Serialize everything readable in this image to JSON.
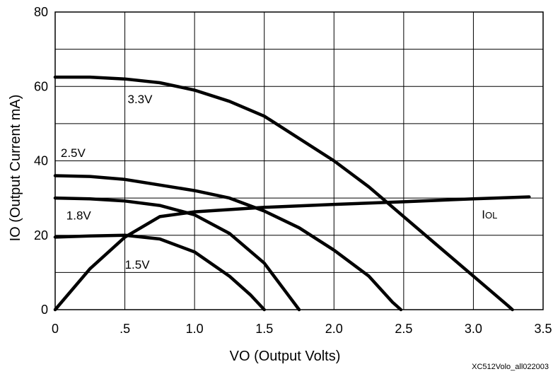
{
  "chart_data": {
    "type": "line",
    "xlabel": "VO (Output Volts)",
    "ylabel": "IO (Output Current mA)",
    "xlim": [
      0,
      3.5
    ],
    "ylim": [
      0,
      80
    ],
    "x_tick_labels": [
      "0",
      ".5",
      "1.0",
      "1.5",
      "2.0",
      "2.5",
      "3.0",
      "3.5"
    ],
    "y_tick_labels": [
      "0",
      "20",
      "40",
      "60",
      "80"
    ],
    "grid": true,
    "series": [
      {
        "name": "3.3V",
        "x": [
          0,
          0.25,
          0.5,
          0.75,
          1.0,
          1.25,
          1.5,
          1.75,
          2.0,
          2.25,
          2.5,
          2.75,
          3.0,
          3.25,
          3.28
        ],
        "y": [
          62.5,
          62.5,
          62,
          61,
          59,
          56,
          52,
          46,
          40,
          33,
          25,
          17,
          9,
          1,
          0
        ]
      },
      {
        "name": "2.5V",
        "x": [
          0,
          0.25,
          0.5,
          0.75,
          1.0,
          1.25,
          1.5,
          1.75,
          2.0,
          2.25,
          2.42,
          2.48
        ],
        "y": [
          36,
          35.8,
          35,
          33.5,
          32,
          30,
          26.5,
          22,
          16,
          9,
          2,
          0
        ]
      },
      {
        "name": "1.8V",
        "x": [
          0,
          0.25,
          0.5,
          0.75,
          1.0,
          1.25,
          1.5,
          1.65,
          1.75
        ],
        "y": [
          30,
          29.8,
          29.2,
          28,
          25.5,
          20.5,
          12.5,
          5,
          0
        ]
      },
      {
        "name": "1.5V",
        "x": [
          0,
          0.25,
          0.5,
          0.75,
          1.0,
          1.25,
          1.4,
          1.5
        ],
        "y": [
          19.5,
          19.8,
          20,
          19,
          15.5,
          9,
          4,
          0
        ]
      },
      {
        "name": "IOL",
        "label_main": "I",
        "label_sub": "OL",
        "x": [
          0,
          0.25,
          0.5,
          0.75,
          1.0,
          1.5,
          2.0,
          2.5,
          3.0,
          3.4
        ],
        "y": [
          0,
          11,
          19.5,
          25,
          26.3,
          27.5,
          28.3,
          29,
          29.8,
          30.3
        ]
      }
    ],
    "footnote": "XC512Volo_all022003"
  }
}
